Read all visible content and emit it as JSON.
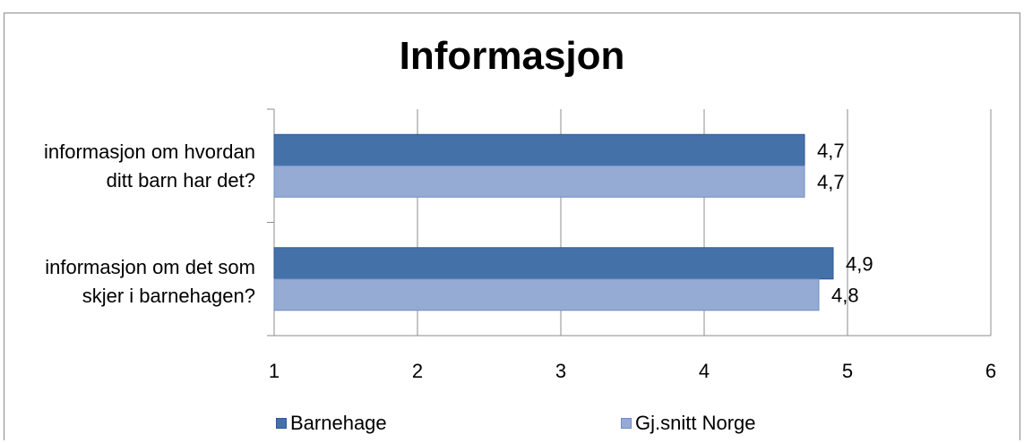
{
  "chart_data": {
    "type": "bar",
    "orientation": "horizontal",
    "title": "Informasjon",
    "categories": [
      "informasjon om hvordan\nditt barn har det?",
      "informasjon om det som\nskjer i barnehagen?"
    ],
    "series": [
      {
        "name": "Barnehage",
        "values": [
          4.7,
          4.9
        ],
        "labels": [
          "4,7",
          "4,9"
        ],
        "color": "#4472a8"
      },
      {
        "name": "Gj.snitt Norge",
        "values": [
          4.7,
          4.8
        ],
        "labels": [
          "4,7",
          "4,8"
        ],
        "color": "#95abd3"
      }
    ],
    "xlim": [
      1,
      6
    ],
    "xticks": [
      "1",
      "2",
      "3",
      "4",
      "5",
      "6"
    ],
    "grid": true,
    "legend_position": "bottom"
  }
}
